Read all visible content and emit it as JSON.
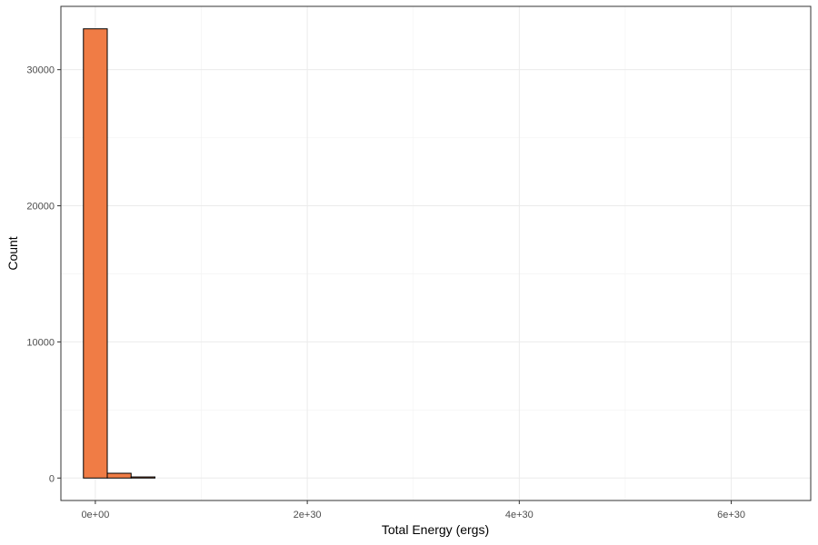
{
  "chart_data": {
    "type": "bar",
    "title": "",
    "xlabel": "Total Energy (ergs)",
    "ylabel": "Count",
    "xlim": [
      -3.25e+29,
      6.75e+30
    ],
    "ylim": [
      -1650,
      34650
    ],
    "x_ticks": [
      {
        "value": 0,
        "label": "0e+00"
      },
      {
        "value": 2e+30,
        "label": "2e+30"
      },
      {
        "value": 4e+30,
        "label": "4e+30"
      },
      {
        "value": 6e+30,
        "label": "6e+30"
      }
    ],
    "y_ticks": [
      {
        "value": 0,
        "label": "0"
      },
      {
        "value": 10000,
        "label": "10000"
      },
      {
        "value": 20000,
        "label": "20000"
      },
      {
        "value": 30000,
        "label": "30000"
      }
    ],
    "x_minor_gridlines": [
      1e+30,
      3e+30,
      5e+30
    ],
    "y_minor_gridlines": [
      5000,
      15000,
      25000
    ],
    "bin_width": 2.25e+29,
    "bins": [
      {
        "start": -1.125e+29,
        "end": 1.125e+29,
        "count": 33000
      },
      {
        "start": 1.125e+29,
        "end": 3.375e+29,
        "count": 350
      },
      {
        "start": 3.375e+29,
        "end": 5.625e+29,
        "count": 80
      },
      {
        "start": 5.625e+29,
        "end": 6.5625e+30,
        "count": 0
      }
    ],
    "fill_color": "#F07C45",
    "outline_color": "#000000",
    "grid": true,
    "legend": "none"
  }
}
